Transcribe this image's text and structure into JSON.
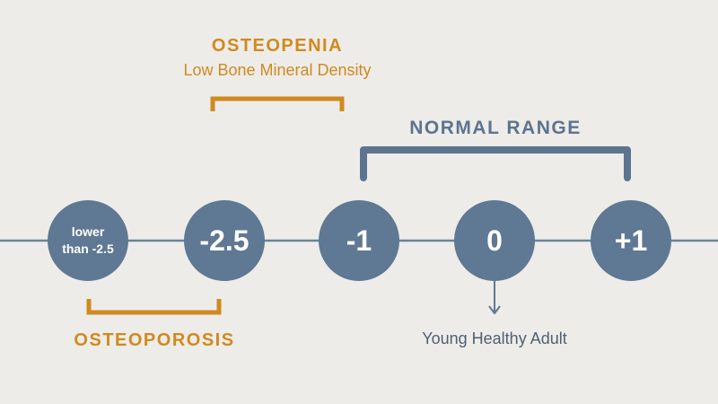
{
  "colors": {
    "background": "#eeece8",
    "node": "#5f7893",
    "axis": "#6b829b",
    "orange": "#cf8a1f",
    "blue_bracket": "#5c7490",
    "caption": "#4f5f73"
  },
  "nodes": [
    {
      "label": "lower\nthan -2.5"
    },
    {
      "label": "-2.5"
    },
    {
      "label": "-1"
    },
    {
      "label": "0"
    },
    {
      "label": "+1"
    }
  ],
  "osteopenia": {
    "title": "OSTEOPENIA",
    "subtitle": "Low Bone Mineral Density"
  },
  "normal_range": {
    "title": "NORMAL RANGE"
  },
  "osteoporosis": {
    "title": "OSTEOPOROSIS"
  },
  "pointer": {
    "caption": "Young Healthy Adult"
  }
}
